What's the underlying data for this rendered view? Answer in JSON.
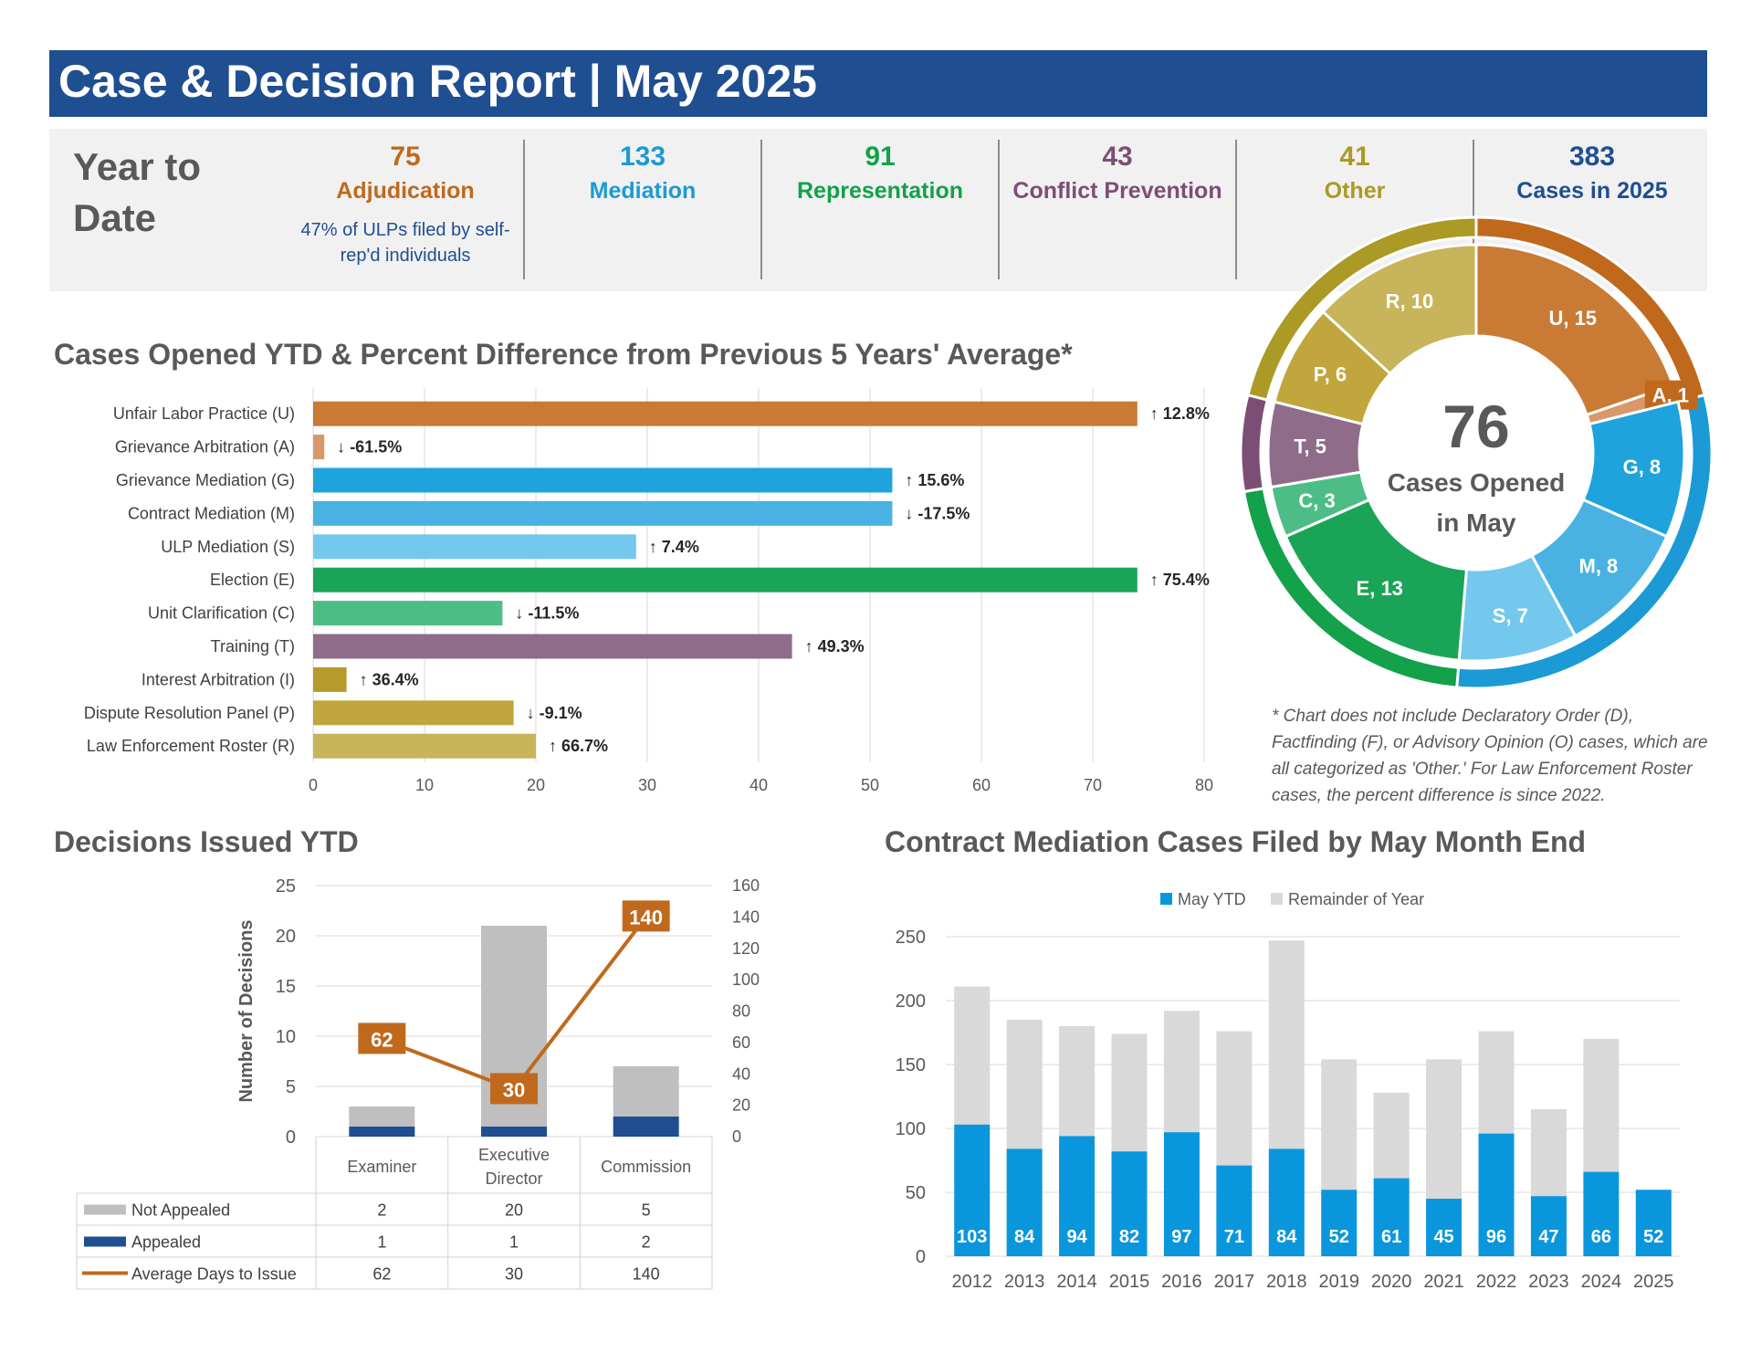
{
  "header": {
    "title": "Case & Decision Report | May 2025"
  },
  "ytd": {
    "label": "Year to Date",
    "kpis": [
      {
        "value": "75",
        "label": "Adjudication",
        "color": "#c0691d",
        "note": "47% of ULPs filed by self-rep'd individuals"
      },
      {
        "value": "133",
        "label": "Mediation",
        "color": "#1b9ad6",
        "note": ""
      },
      {
        "value": "91",
        "label": "Representation",
        "color": "#13a14a",
        "note": ""
      },
      {
        "value": "43",
        "label": "Conflict Prevention",
        "color": "#7d4e75",
        "note": ""
      },
      {
        "value": "41",
        "label": "Other",
        "color": "#ab9a25",
        "note": ""
      },
      {
        "value": "383",
        "label": "Cases in 2025",
        "color": "#1f4e91",
        "note": ""
      }
    ]
  },
  "colors": {
    "adjudication": "#c0691d",
    "mediation": "#1b9ad6",
    "representation": "#13a14a",
    "conflict_prevention": "#7d4e75",
    "other": "#ab9a25",
    "header_blue": "#1f4e91"
  },
  "cases_section": {
    "title": "Cases Opened YTD & Percent Difference from Previous 5 Years' Average*"
  },
  "donut": {
    "center_value": "76",
    "center_label_1": "Cases Opened",
    "center_label_2": "in May"
  },
  "footnote": "* Chart does not include Declaratory Order (D), Factfinding (F), or Advisory Opinion (O) cases, which are all categorized as 'Other.' For Law Enforcement Roster cases, the percent difference is since 2022.",
  "decisions_section": {
    "title": "Decisions Issued YTD"
  },
  "mediation_section": {
    "title": "Contract Mediation Cases Filed by May Month End"
  },
  "chart_data": [
    {
      "type": "bar",
      "orientation": "horizontal",
      "categories": [
        "Unfair Labor Practice (U)",
        "Grievance Arbitration (A)",
        "Grievance Mediation (G)",
        "Contract Mediation (M)",
        "ULP Mediation (S)",
        "Election (E)",
        "Unit Clarification (C)",
        "Training (T)",
        "Interest Arbitration (I)",
        "Dispute Resolution Panel (P)",
        "Law Enforcement Roster (R)"
      ],
      "values": [
        74,
        1,
        52,
        52,
        29,
        74,
        17,
        43,
        3,
        18,
        20
      ],
      "labels": [
        "↑ 12.8%",
        "↓ -61.5%",
        "↑ 15.6%",
        "↓ -17.5%",
        "↑ 7.4%",
        "↑ 75.4%",
        "↓ -11.5%",
        "↑ 49.3%",
        "↑ 36.4%",
        "↓ -9.1%",
        "↑ 66.7%"
      ],
      "colors": [
        "#c97a35",
        "#d8986a",
        "#1fa3dc",
        "#49b2e3",
        "#74c8ee",
        "#1aa457",
        "#4dbd86",
        "#8e6c8a",
        "#b69a2c",
        "#c0a63c",
        "#c7b45b"
      ],
      "xlim": [
        0,
        80
      ],
      "xticks": [
        0,
        10,
        20,
        30,
        40,
        50,
        60,
        70,
        80
      ],
      "grid": true
    },
    {
      "type": "pie",
      "subtype": "donut",
      "inner": [
        {
          "label": "U, 15",
          "value": 15,
          "color": "#c97a35"
        },
        {
          "label": "A, 1",
          "value": 1,
          "color": "#d8986a"
        },
        {
          "label": "G, 8",
          "value": 8,
          "color": "#1fa3dc"
        },
        {
          "label": "M, 8",
          "value": 8,
          "color": "#49b2e3"
        },
        {
          "label": "S, 7",
          "value": 7,
          "color": "#74c8ee"
        },
        {
          "label": "E, 13",
          "value": 13,
          "color": "#1aa457"
        },
        {
          "label": "C, 3",
          "value": 3,
          "color": "#4dbd86"
        },
        {
          "label": "T, 5",
          "value": 5,
          "color": "#8e6c8a"
        },
        {
          "label": "P, 6",
          "value": 6,
          "color": "#c0a63c"
        },
        {
          "label": "R, 10",
          "value": 10,
          "color": "#c7b45b"
        }
      ],
      "outer": [
        {
          "name": "Adjudication",
          "value": 16,
          "color": "#c0691d"
        },
        {
          "name": "Mediation",
          "value": 23,
          "color": "#1b9ad6"
        },
        {
          "name": "Representation",
          "value": 16,
          "color": "#13a14a"
        },
        {
          "name": "Conflict Prevention",
          "value": 5,
          "color": "#7d4e75"
        },
        {
          "name": "Other",
          "value": 16,
          "color": "#ab9a25"
        }
      ]
    },
    {
      "type": "bar",
      "subtype": "stacked-bar-with-line",
      "categories": [
        "Examiner",
        "Executive Director",
        "Commission"
      ],
      "series": [
        {
          "name": "Not Appealed",
          "values": [
            2,
            20,
            5
          ],
          "color": "#bfbfbf"
        },
        {
          "name": "Appealed",
          "values": [
            1,
            1,
            2
          ],
          "color": "#1f4e91"
        },
        {
          "name": "Average Days to Issue",
          "values": [
            62,
            30,
            140
          ],
          "color": "#c0691d",
          "axis": "secondary"
        }
      ],
      "ylabel": "Number of Decisions",
      "ylim": [
        0,
        25
      ],
      "yticks": [
        0,
        5,
        10,
        15,
        20,
        25
      ],
      "y2lim": [
        0,
        160
      ],
      "y2ticks": [
        0,
        20,
        40,
        60,
        80,
        100,
        120,
        140,
        160
      ],
      "data_table": true
    },
    {
      "type": "bar",
      "subtype": "stacked",
      "categories": [
        "2012",
        "2013",
        "2014",
        "2015",
        "2016",
        "2017",
        "2018",
        "2019",
        "2020",
        "2021",
        "2022",
        "2023",
        "2024",
        "2025"
      ],
      "series": [
        {
          "name": "May YTD",
          "values": [
            103,
            84,
            94,
            82,
            97,
            71,
            84,
            52,
            61,
            45,
            96,
            47,
            66,
            52
          ],
          "color": "#0a96dc"
        },
        {
          "name": "Remainder of Year",
          "values": [
            108,
            101,
            86,
            92,
            95,
            105,
            163,
            102,
            67,
            109,
            80,
            68,
            104,
            0
          ],
          "color": "#d9d9d9"
        }
      ],
      "ylim": [
        0,
        250
      ],
      "yticks": [
        0,
        50,
        100,
        150,
        200,
        250
      ],
      "legend": "top",
      "grid": true
    }
  ]
}
